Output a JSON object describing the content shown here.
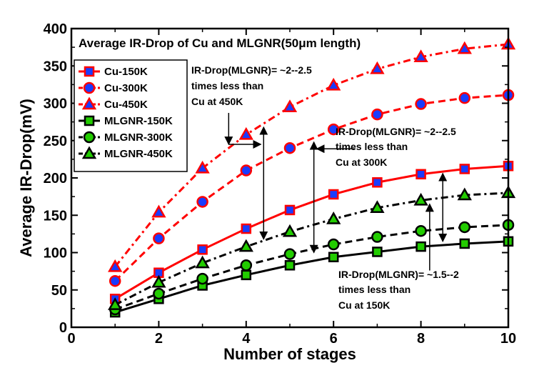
{
  "chart_data": {
    "type": "line",
    "title": "Average IR-Drop of Cu and MLGNR(50μm length)",
    "xlabel": "Number of stages",
    "ylabel": "Average IR-Drop(mV)",
    "xlim": [
      0,
      10
    ],
    "ylim": [
      0,
      400
    ],
    "x_ticks": [
      0,
      2,
      4,
      6,
      8,
      10
    ],
    "y_ticks": [
      0,
      50,
      100,
      150,
      200,
      250,
      300,
      350,
      400
    ],
    "grid": false,
    "legend_position": "top-left",
    "x": [
      1,
      2,
      3,
      4,
      5,
      6,
      7,
      8,
      9,
      10
    ],
    "series": [
      {
        "name": "Cu-150K",
        "values": [
          38,
          73,
          104,
          132,
          157,
          178,
          194,
          205,
          212,
          216
        ],
        "line": "#ff0000",
        "marker": "square",
        "fill": "#1a3cff",
        "dash": "solid"
      },
      {
        "name": "Cu-300K",
        "values": [
          62,
          119,
          168,
          210,
          240,
          265,
          285,
          299,
          307,
          311
        ],
        "line": "#ff0000",
        "marker": "circle",
        "fill": "#1a3cff",
        "dash": "dashed"
      },
      {
        "name": "Cu-450K",
        "values": [
          81,
          154,
          213,
          258,
          295,
          324,
          346,
          362,
          373,
          379
        ],
        "line": "#ff0000",
        "marker": "triangle",
        "fill": "#1a3cff",
        "dash": "dashdot"
      },
      {
        "name": "MLGNR-150K",
        "values": [
          20,
          38,
          56,
          70,
          83,
          94,
          101,
          108,
          112,
          115
        ],
        "line": "#000000",
        "marker": "square",
        "fill": "#22cc00",
        "dash": "solid"
      },
      {
        "name": "MLGNR-300K",
        "values": [
          24,
          45,
          65,
          83,
          98,
          111,
          121,
          129,
          134,
          137
        ],
        "line": "#000000",
        "marker": "circle",
        "fill": "#22cc00",
        "dash": "dashed"
      },
      {
        "name": "MLGNR-450K",
        "values": [
          30,
          60,
          86,
          108,
          128,
          145,
          160,
          170,
          177,
          180
        ],
        "line": "#000000",
        "marker": "triangle",
        "fill": "#22cc00",
        "dash": "dashdot"
      }
    ],
    "annotations": [
      {
        "lines": [
          "IR-Drop(MLGNR)= ~2--2.5",
          "times less than",
          "Cu at 450K"
        ]
      },
      {
        "lines": [
          "IR-Drop(MLGNR)= ~2--2.5",
          "times less than",
          "Cu at 300K"
        ]
      },
      {
        "lines": [
          "IR-Drop(MLGNR)= ~1.5--2",
          "times less than",
          "Cu at 150K"
        ]
      }
    ]
  }
}
